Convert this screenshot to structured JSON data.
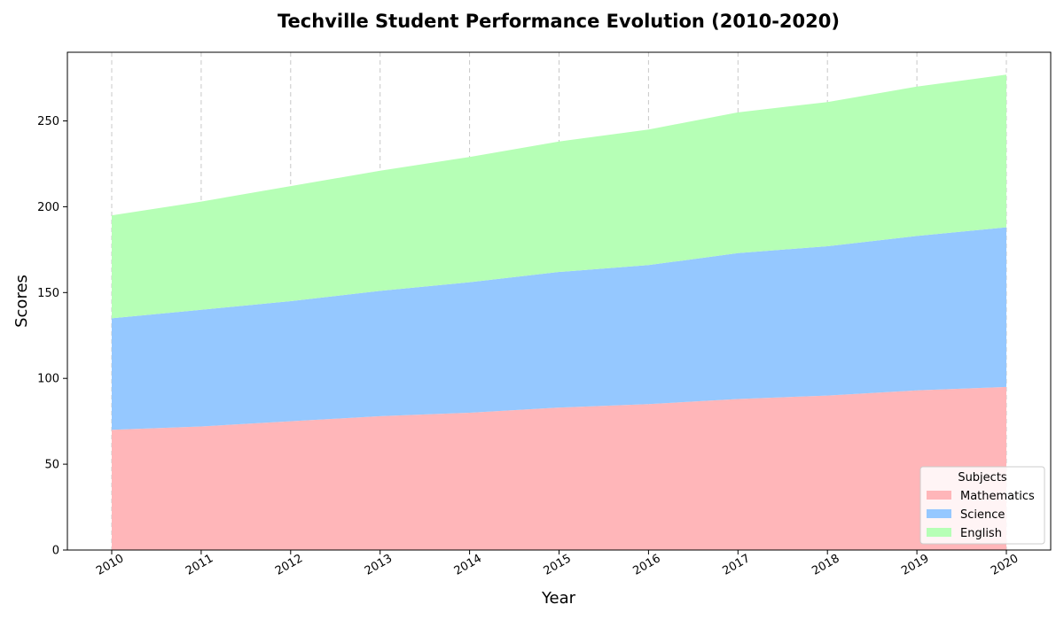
{
  "chart_data": {
    "type": "area",
    "stacked": true,
    "title": "Techville Student Performance Evolution (2010-2020)",
    "xlabel": "Year",
    "ylabel": "Scores",
    "x": [
      "2010",
      "2011",
      "2012",
      "2013",
      "2014",
      "2015",
      "2016",
      "2017",
      "2018",
      "2019",
      "2020"
    ],
    "ylim": [
      0,
      290
    ],
    "yticks": [
      0,
      50,
      100,
      150,
      200,
      250
    ],
    "grid": "vertical-dashed",
    "legend": {
      "title": "Subjects",
      "position": "bottom-right"
    },
    "series": [
      {
        "name": "Mathematics",
        "color": "#ffb6b9",
        "values": [
          70,
          72,
          75,
          78,
          80,
          83,
          85,
          88,
          90,
          93,
          95
        ]
      },
      {
        "name": "Science",
        "color": "#95c8ff",
        "values": [
          65,
          68,
          70,
          73,
          76,
          79,
          81,
          85,
          87,
          90,
          93
        ]
      },
      {
        "name": "English",
        "color": "#b6ffb6",
        "values": [
          60,
          63,
          67,
          70,
          73,
          76,
          79,
          82,
          84,
          87,
          89
        ]
      }
    ]
  }
}
